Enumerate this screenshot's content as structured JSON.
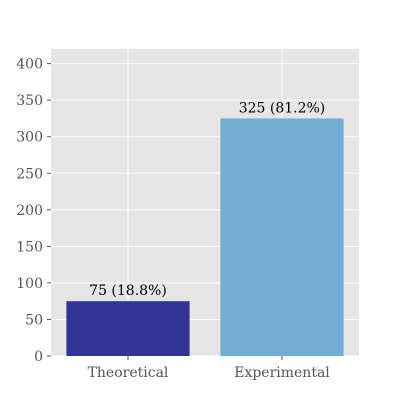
{
  "chart_data": {
    "type": "bar",
    "categories": [
      "Theoretical",
      "Experimental"
    ],
    "values": [
      75,
      325
    ],
    "data_labels": [
      "75 (18.8%)",
      "325 (81.2%)"
    ],
    "colors": [
      "#333594",
      "#74add3"
    ],
    "ylim": [
      0,
      420
    ],
    "yticks": [
      0,
      50,
      100,
      150,
      200,
      250,
      300,
      350,
      400
    ],
    "title": "",
    "xlabel": "",
    "ylabel": "",
    "grid": true,
    "background": "#e5e5e5",
    "grid_color": "#ffffff"
  }
}
